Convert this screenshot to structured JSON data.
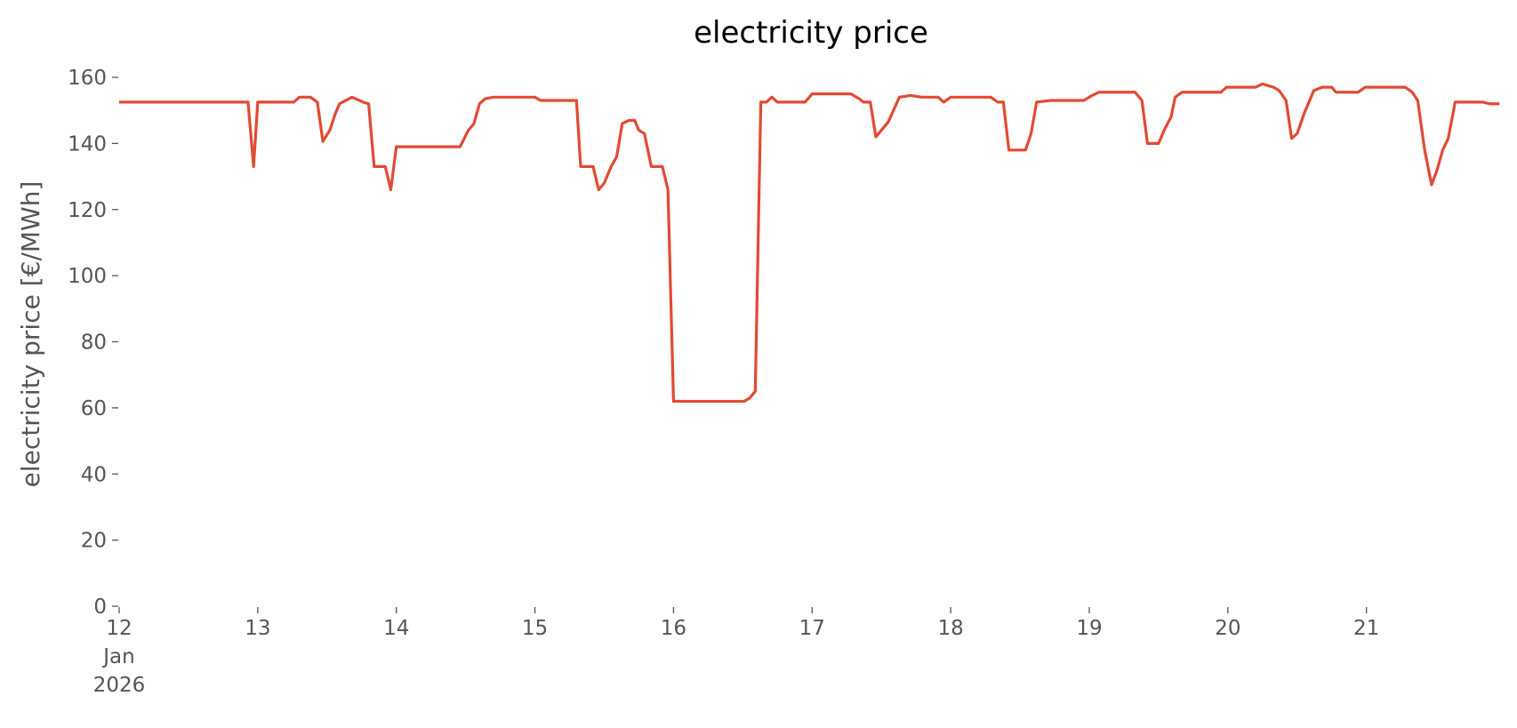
{
  "chart_data": {
    "type": "line",
    "title": "electricity price",
    "ylabel": "electricity price [€/MWh]",
    "x": [
      12.0,
      12.93,
      12.97,
      13.0,
      13.26,
      13.3,
      13.38,
      13.43,
      13.47,
      13.52,
      13.56,
      13.59,
      13.68,
      13.76,
      13.8,
      13.84,
      13.92,
      13.96,
      14.0,
      14.46,
      14.52,
      14.56,
      14.6,
      14.64,
      14.7,
      15.0,
      15.04,
      15.3,
      15.33,
      15.42,
      15.46,
      15.5,
      15.55,
      15.59,
      15.63,
      15.68,
      15.72,
      15.75,
      15.79,
      15.84,
      15.92,
      15.96,
      16.0,
      16.51,
      16.55,
      16.59,
      16.63,
      16.67,
      16.71,
      16.75,
      16.95,
      17.0,
      17.28,
      17.34,
      17.37,
      17.42,
      17.46,
      17.55,
      17.63,
      17.71,
      17.79,
      17.91,
      17.95,
      18.0,
      18.29,
      18.34,
      18.38,
      18.42,
      18.54,
      18.58,
      18.62,
      18.72,
      18.96,
      19.02,
      19.07,
      19.33,
      19.38,
      19.42,
      19.5,
      19.54,
      19.59,
      19.62,
      19.67,
      19.95,
      19.99,
      20.2,
      20.25,
      20.33,
      20.37,
      20.42,
      20.46,
      20.5,
      20.55,
      20.59,
      20.62,
      20.68,
      20.75,
      20.78,
      20.94,
      20.99,
      21.28,
      21.33,
      21.37,
      21.42,
      21.47,
      21.51,
      21.55,
      21.59,
      21.64,
      21.84,
      21.89,
      21.96
    ],
    "values": [
      152.5,
      152.5,
      133,
      152.5,
      152.5,
      154,
      154,
      152.5,
      140.6,
      144,
      149,
      152,
      154,
      152.5,
      152,
      133,
      133,
      126,
      139,
      139,
      144,
      146,
      152,
      153.5,
      154,
      154,
      153,
      153,
      133,
      133,
      126,
      128,
      133,
      136,
      146,
      147,
      147,
      144,
      143,
      133,
      133,
      126,
      62,
      62,
      63,
      65,
      152.5,
      152.5,
      154,
      152.5,
      152.5,
      155,
      155,
      153.5,
      152.5,
      152.5,
      142,
      146.5,
      154,
      154.5,
      154,
      154,
      152.5,
      154,
      154,
      152.5,
      152.5,
      138,
      138,
      143,
      152.5,
      153,
      153,
      154.5,
      155.5,
      155.5,
      153,
      140,
      140,
      144,
      148,
      154,
      155.5,
      155.5,
      157,
      157,
      158,
      157,
      156,
      153,
      141.5,
      143,
      149,
      153,
      156,
      157,
      157,
      155.5,
      155.5,
      157,
      157,
      155.5,
      153,
      138,
      127.5,
      132,
      138,
      141.5,
      152.5,
      152.5,
      152,
      152
    ],
    "color": "#e24a33",
    "xlim": [
      12,
      21.958
    ],
    "xticks": [
      {
        "value": 12,
        "label": "12 Jan 2026"
      },
      13,
      14,
      15,
      16,
      17,
      18,
      19,
      20,
      21
    ],
    "ylim": [
      0,
      160
    ],
    "yticks": [
      0,
      20,
      40,
      60,
      80,
      100,
      120,
      140,
      160
    ]
  }
}
